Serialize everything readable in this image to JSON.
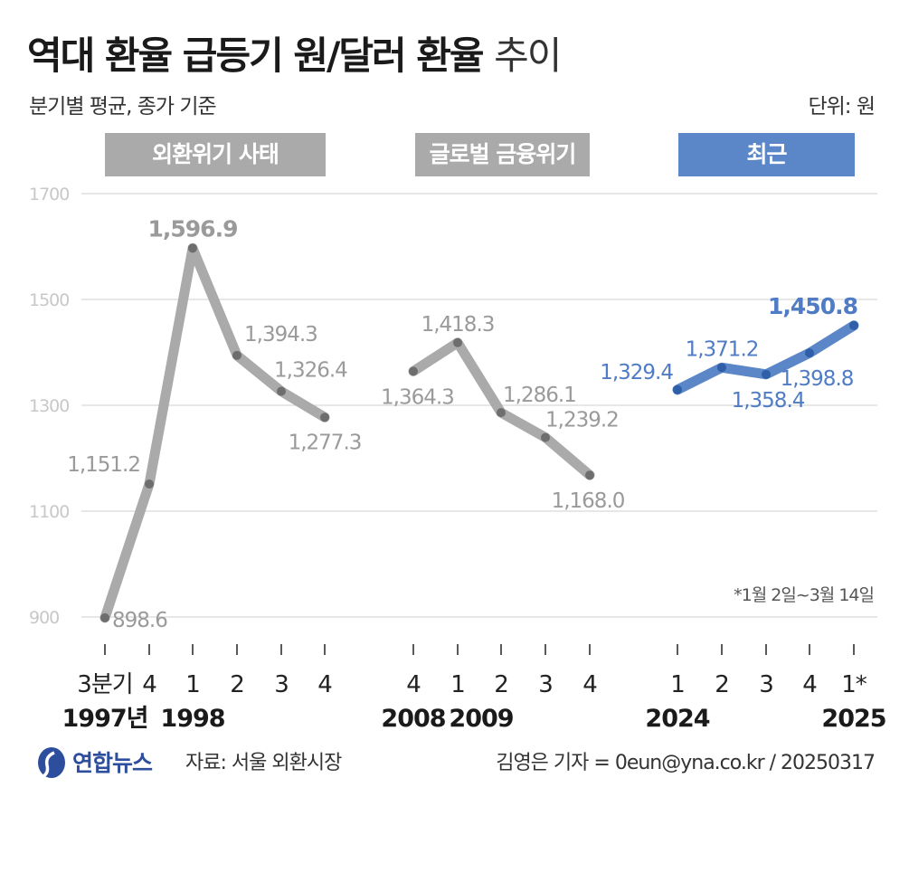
{
  "header": {
    "title_bold": "역대 환율 급등기 원/달러 환율",
    "title_light": "추이",
    "subtitle": "분기별 평균, 종가 기준",
    "unit": "단위: 원"
  },
  "periods": [
    {
      "label": "외환위기 사태",
      "color": "#aaaaaa"
    },
    {
      "label": "글로벌 금융위기",
      "color": "#aaaaaa"
    },
    {
      "label": "최근",
      "color": "#5b86c8"
    }
  ],
  "chart_data": {
    "type": "line",
    "y_ticks": [
      "1700",
      "1500",
      "1300",
      "1100",
      "900"
    ],
    "ylim": [
      900,
      1700
    ],
    "grid": true,
    "series": [
      {
        "color": "#aaaaaa",
        "label_color": "#9a9a9a",
        "categories": [
          "3분기",
          "4",
          "1",
          "2",
          "3",
          "4"
        ],
        "values": [
          898.6,
          1151.2,
          1596.9,
          1394.3,
          1326.4,
          1277.3
        ],
        "labels": [
          "898.6",
          "1,151.2",
          "1,596.9",
          "1,394.3",
          "1,326.4",
          "1,277.3"
        ]
      },
      {
        "color": "#aaaaaa",
        "label_color": "#9a9a9a",
        "categories": [
          "4",
          "1",
          "2",
          "3",
          "4"
        ],
        "values": [
          1364.3,
          1418.3,
          1286.1,
          1239.2,
          1168.0
        ],
        "labels": [
          "1,364.3",
          "1,418.3",
          "1,286.1",
          "1,239.2",
          "1,168.0"
        ]
      },
      {
        "color": "#5b86c8",
        "label_color": "#4f7cc4",
        "categories": [
          "1",
          "2",
          "3",
          "4",
          "1*"
        ],
        "values": [
          1329.4,
          1371.2,
          1358.4,
          1398.8,
          1450.8
        ],
        "labels": [
          "1,329.4",
          "1,371.2",
          "1,358.4",
          "1,398.8",
          "1,450.8"
        ]
      }
    ],
    "years": [
      "1997년",
      "1998",
      "2008",
      "2009",
      "2024",
      "2025"
    ],
    "annotation": "*1월 2일~3월 14일"
  },
  "footer": {
    "logo": "연합뉴스",
    "source": "자료: 서울 외환시장",
    "credit": "김영은 기자 = 0eun@yna.co.kr / 20250317"
  }
}
